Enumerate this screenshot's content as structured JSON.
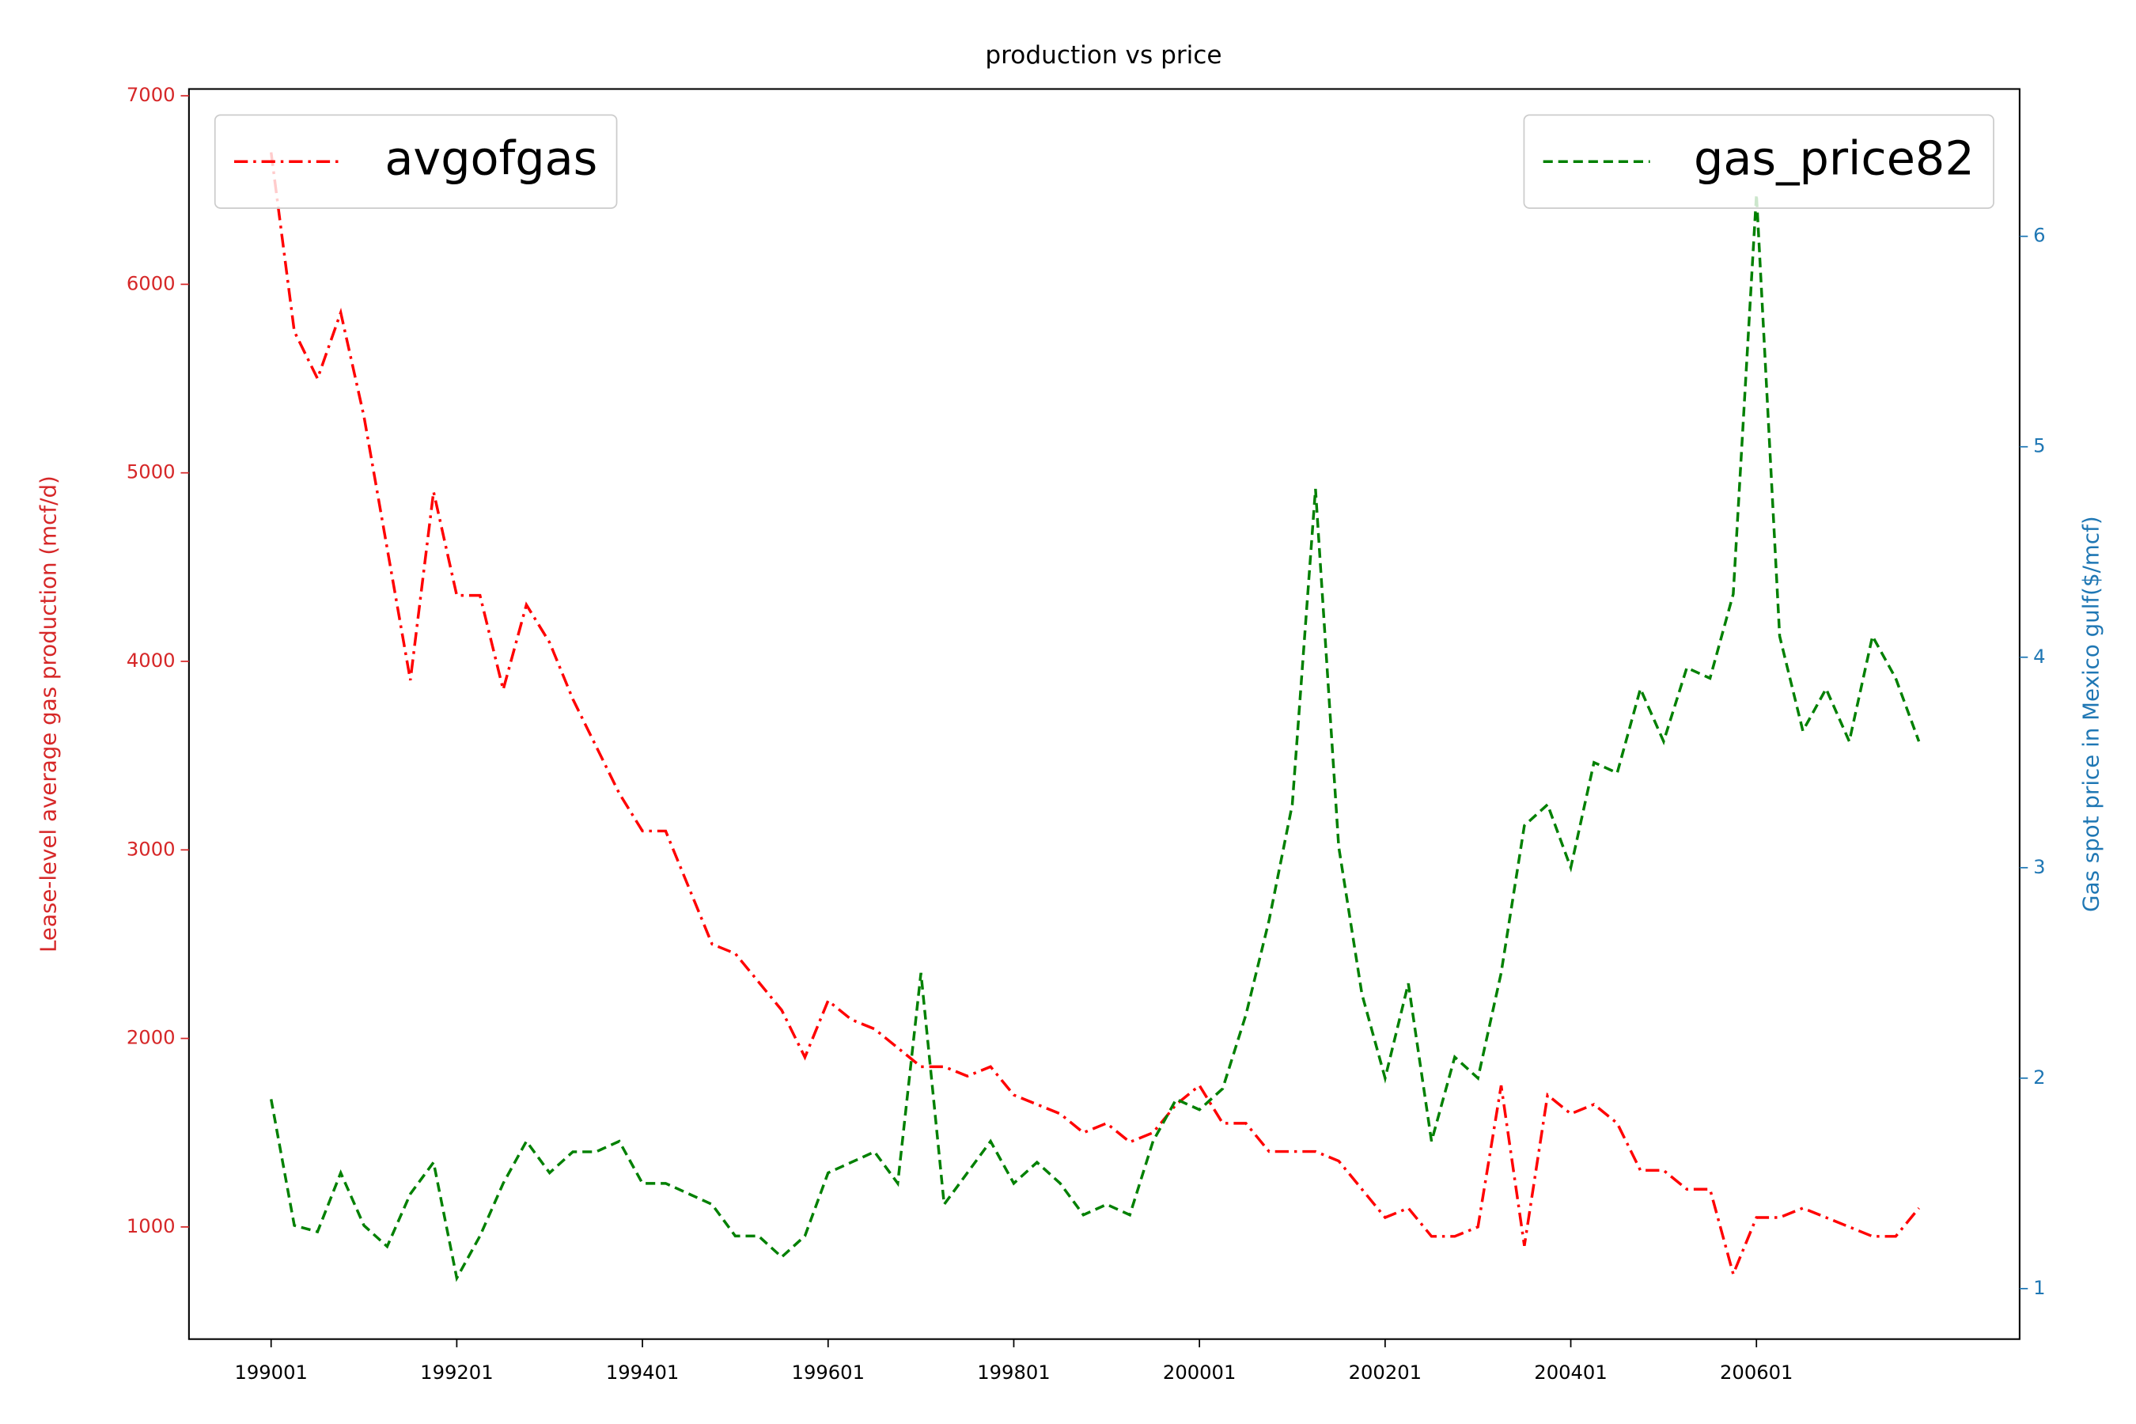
{
  "chart_data": {
    "type": "line",
    "title": "production vs price",
    "y_label": "Lease-level average gas production (mcf/d)",
    "y2_label": "Gas spot price in Mexico gulf($/mcf)",
    "y_axis_color": "#d62728",
    "y2_axis_color": "#1f77b4",
    "categories": [
      "199001",
      null,
      null,
      null,
      null,
      null,
      null,
      null,
      "199201",
      null,
      null,
      null,
      null,
      null,
      null,
      null,
      "199401",
      null,
      null,
      null,
      null,
      null,
      null,
      null,
      "199601",
      null,
      null,
      null,
      null,
      null,
      null,
      null,
      "199801",
      null,
      null,
      null,
      null,
      null,
      null,
      null,
      "200001",
      null,
      null,
      null,
      null,
      null,
      null,
      null,
      "200201",
      null,
      null,
      null,
      null,
      null,
      null,
      null,
      "200401",
      null,
      null,
      null,
      null,
      null,
      null,
      null,
      "200601",
      null,
      null,
      null,
      null,
      null,
      null,
      null
    ],
    "ylim": [
      405,
      7036
    ],
    "yticks": [
      1000,
      2000,
      3000,
      4000,
      5000,
      6000,
      7000
    ],
    "y2lim": [
      0.76,
      6.7
    ],
    "y2ticks": [
      1,
      2,
      3,
      4,
      5,
      6
    ],
    "series": [
      {
        "name": "avgofgas",
        "color": "#ff0000",
        "linestyle": "-.",
        "axis": "y",
        "legend": "upper left",
        "values": [
          6700,
          5750,
          5500,
          5850,
          5300,
          4600,
          3900,
          4900,
          4350,
          4350,
          3850,
          4300,
          4100,
          3800,
          3550,
          3300,
          3100,
          3100,
          2800,
          2500,
          2450,
          2300,
          2150,
          1900,
          2200,
          2100,
          2050,
          1950,
          1850,
          1850,
          1800,
          1850,
          1700,
          1650,
          1600,
          1500,
          1550,
          1450,
          1500,
          1650,
          1750,
          1550,
          1550,
          1400,
          1400,
          1400,
          1350,
          1200,
          1050,
          1100,
          950,
          950,
          1000,
          1750,
          900,
          1700,
          1600,
          1650,
          1550,
          1300,
          1300,
          1200,
          1200,
          750,
          1050,
          1050,
          1100,
          1050,
          1000,
          950,
          950,
          1100
        ]
      },
      {
        "name": "gas_price82",
        "color": "#008000",
        "linestyle": "--",
        "axis": "y2",
        "legend": "upper right",
        "values": [
          1.9,
          1.3,
          1.27,
          1.55,
          1.3,
          1.2,
          1.45,
          1.6,
          1.05,
          1.25,
          1.5,
          1.7,
          1.55,
          1.65,
          1.65,
          1.7,
          1.5,
          1.5,
          1.45,
          1.4,
          1.25,
          1.25,
          1.15,
          1.25,
          1.55,
          1.6,
          1.65,
          1.5,
          2.5,
          1.4,
          1.55,
          1.7,
          1.5,
          1.6,
          1.5,
          1.35,
          1.4,
          1.35,
          1.7,
          1.9,
          1.85,
          1.95,
          2.3,
          2.75,
          3.3,
          4.8,
          3.1,
          2.4,
          2.0,
          2.45,
          1.7,
          2.1,
          2.0,
          2.5,
          3.2,
          3.3,
          3.0,
          3.5,
          3.45,
          3.85,
          3.6,
          3.95,
          3.9,
          4.3,
          6.2,
          4.1,
          3.65,
          3.85,
          3.6,
          4.1,
          3.9,
          3.6
        ]
      }
    ]
  }
}
